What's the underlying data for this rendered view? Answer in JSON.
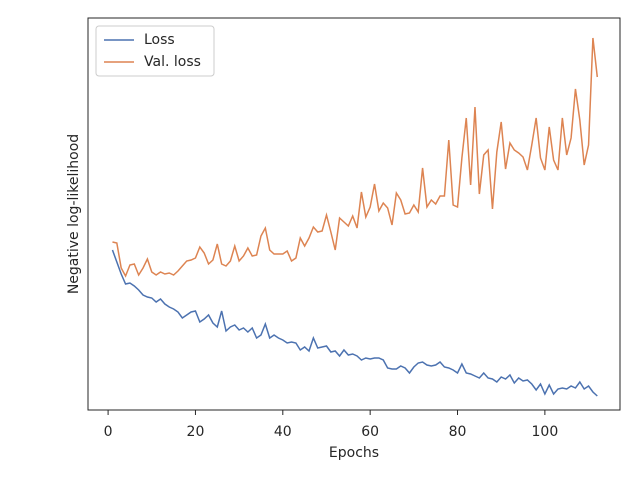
{
  "chart_data": {
    "type": "line",
    "x_label": "Epochs",
    "y_label": "Negative log-likelihood",
    "x": [
      1,
      2,
      3,
      4,
      5,
      6,
      7,
      8,
      9,
      10,
      11,
      12,
      13,
      14,
      15,
      16,
      17,
      18,
      19,
      20,
      21,
      22,
      23,
      24,
      25,
      26,
      27,
      28,
      29,
      30,
      31,
      32,
      33,
      34,
      35,
      36,
      37,
      38,
      39,
      40,
      41,
      42,
      43,
      44,
      45,
      46,
      47,
      48,
      49,
      50,
      51,
      52,
      53,
      54,
      55,
      56,
      57,
      58,
      59,
      60,
      61,
      62,
      63,
      64,
      65,
      66,
      67,
      68,
      69,
      70,
      71,
      72,
      73,
      74,
      75,
      76,
      77,
      78,
      79,
      80,
      81,
      82,
      83,
      84,
      85,
      86,
      87,
      88,
      89,
      90,
      91,
      92,
      93,
      94,
      95,
      96,
      97,
      98,
      99,
      100,
      101,
      102,
      103,
      104,
      105,
      106,
      107,
      108,
      109,
      110,
      111,
      112
    ],
    "series": [
      {
        "name": "Loss",
        "color": "#4c72b0",
        "values": [
          160,
          148,
          136,
          126,
          127,
          124,
          120,
          115,
          113,
          112,
          108,
          111,
          106,
          103,
          101,
          98,
          92,
          95,
          98,
          99,
          88,
          91,
          95,
          87,
          83,
          99,
          79,
          83,
          85,
          80,
          82,
          78,
          82,
          72,
          75,
          86,
          72,
          75,
          72,
          70,
          67,
          68,
          67,
          60,
          63,
          59,
          72,
          62,
          63,
          64,
          58,
          59,
          54,
          60,
          55,
          56,
          54,
          50,
          52,
          51,
          52,
          52,
          50,
          42,
          41,
          41,
          44,
          42,
          37,
          43,
          47,
          48,
          45,
          44,
          45,
          48,
          43,
          42,
          40,
          37,
          46,
          37,
          36,
          34,
          32,
          37,
          32,
          31,
          28,
          33,
          31,
          35,
          27,
          32,
          29,
          30,
          26,
          20,
          26,
          16,
          25,
          16,
          21,
          22,
          21,
          24,
          22,
          28,
          21,
          24,
          18,
          14
        ]
      },
      {
        "name": "Val. loss",
        "color": "#dd8452",
        "values": [
          168,
          167,
          142,
          134,
          145,
          146,
          135,
          142,
          151,
          138,
          135,
          138,
          136,
          137,
          135,
          139,
          144,
          149,
          150,
          152,
          163,
          157,
          146,
          150,
          166,
          146,
          144,
          149,
          164,
          149,
          154,
          162,
          154,
          155,
          174,
          182,
          160,
          156,
          156,
          156,
          159,
          149,
          152,
          172,
          164,
          172,
          183,
          178,
          179,
          195,
          178,
          160,
          192,
          188,
          184,
          194,
          182,
          218,
          193,
          203,
          226,
          199,
          207,
          202,
          185,
          217,
          210,
          196,
          197,
          205,
          198,
          242,
          203,
          210,
          206,
          214,
          214,
          270,
          205,
          203,
          252,
          292,
          225,
          303,
          216,
          255,
          260,
          201,
          258,
          288,
          241,
          267,
          260,
          257,
          253,
          240,
          265,
          292,
          252,
          240,
          283,
          250,
          240,
          292,
          255,
          272,
          321,
          290,
          245,
          265,
          372,
          333
        ]
      }
    ],
    "xlim": [
      -4.6,
      117.2
    ],
    "xticks": [
      0,
      20,
      40,
      60,
      80,
      100
    ],
    "ylim": [
      0,
      392
    ],
    "grid": false,
    "legend": "upper left"
  }
}
